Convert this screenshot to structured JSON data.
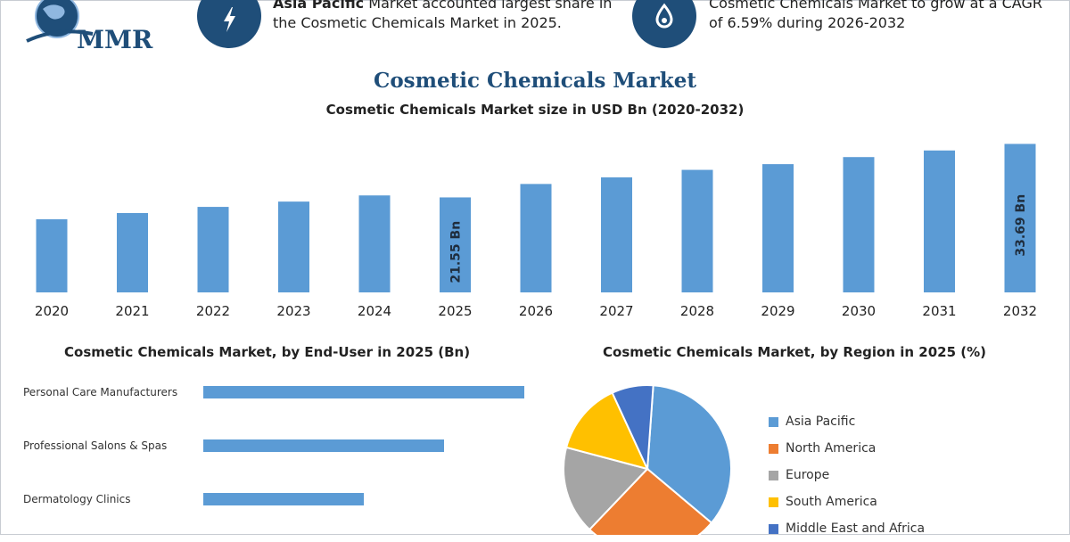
{
  "logo": {
    "text": "MMR"
  },
  "banners": [
    {
      "icon": "lightning-icon",
      "bold": "Asia Pacific",
      "rest": "Market accounted largest share in",
      "line2": "the Cosmetic Chemicals Market in 2025."
    },
    {
      "icon": "drop-icon",
      "line1": "Cosmetic Chemicals Market to grow at a CAGR",
      "line2": "of 6.59% during 2026-2032"
    }
  ],
  "header": {
    "title": "Cosmetic Chemicals Market",
    "subtitle": "Cosmetic Chemicals Market size in USD Bn (2020-2032)"
  },
  "colors": {
    "bar": "#5b9bd5",
    "accent": "#1f4e79",
    "asia_pacific": "#5b9bd5",
    "north_america": "#ed7d31",
    "europe": "#a5a5a5",
    "south_america": "#ffc000",
    "middle_east_africa": "#4472c4"
  },
  "chart_data": [
    {
      "type": "bar",
      "title": "Cosmetic Chemicals Market size in USD Bn (2020-2032)",
      "categories": [
        "2020",
        "2021",
        "2022",
        "2023",
        "2024",
        "2025",
        "2026",
        "2027",
        "2028",
        "2029",
        "2030",
        "2031",
        "2032"
      ],
      "values": [
        16.6,
        18.0,
        19.4,
        20.6,
        22.0,
        21.55,
        24.6,
        26.1,
        27.8,
        29.1,
        30.7,
        32.2,
        33.69
      ],
      "data_labels": {
        "5": "21.55 Bn",
        "12": "33.69 Bn"
      },
      "ylim": [
        0,
        36
      ],
      "grid": false
    },
    {
      "type": "bar",
      "orientation": "horizontal",
      "title": "Cosmetic Chemicals Market, by End-User in 2025 (Bn)",
      "categories": [
        "Personal Care Manufacturers",
        "Professional Salons & Spas",
        "Dermatology Clinics"
      ],
      "values": [
        12.0,
        9.0,
        6.0
      ],
      "xlim": [
        0,
        13
      ]
    },
    {
      "type": "pie",
      "title": "Cosmetic Chemicals Market, by Region in 2025 (%)",
      "categories": [
        "Asia Pacific",
        "North America",
        "Europe",
        "South America",
        "Middle East and Africa"
      ],
      "values": [
        35,
        26,
        17,
        14,
        8
      ],
      "legend": "right"
    }
  ]
}
